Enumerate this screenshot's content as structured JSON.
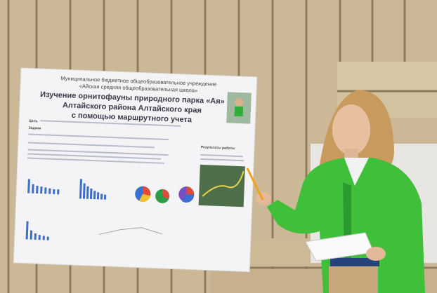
{
  "poster": {
    "institution": [
      "Муниципальное бюджетное общеобразовательное учреждение",
      "«Айская средняя общеобразовательная школа»"
    ],
    "title": [
      "Изучение орнитофауны природного парка «Ая»",
      "Алтайского района Алтайского края",
      "с помощью маршрутного учета"
    ],
    "headings": [
      "Цель",
      "Задачи",
      "Результаты работы"
    ]
  }
}
